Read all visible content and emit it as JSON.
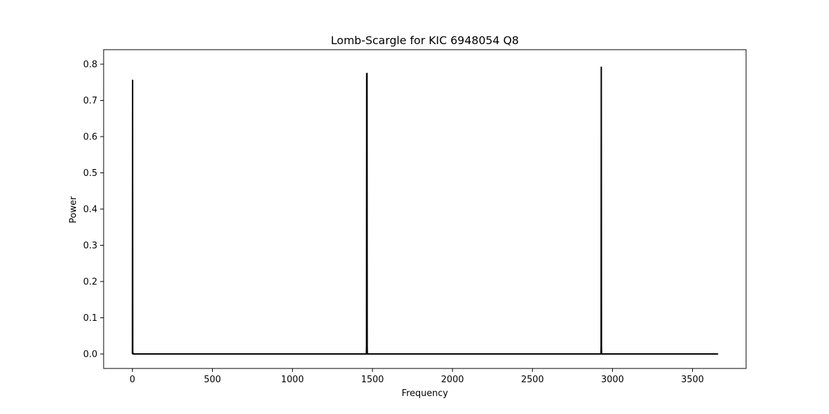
{
  "chart_data": {
    "type": "line",
    "title": "Lomb-Scargle for KIC 6948054 Q8",
    "xlabel": "Frequency",
    "ylabel": "Power",
    "xlim": [
      -180,
      3835
    ],
    "ylim": [
      -0.04,
      0.84
    ],
    "xticks": [
      0,
      500,
      1000,
      1500,
      2000,
      2500,
      3000,
      3500
    ],
    "yticks": [
      0.0,
      0.1,
      0.2,
      0.3,
      0.4,
      0.5,
      0.6,
      0.7,
      0.8
    ],
    "ytick_labels": [
      "0.0",
      "0.1",
      "0.2",
      "0.3",
      "0.4",
      "0.5",
      "0.6",
      "0.7",
      "0.8"
    ],
    "grid": false,
    "legend": "none",
    "color": "#000000",
    "series": [
      {
        "x": [
          0,
          1,
          2,
          3,
          4,
          384,
          392,
          440,
          448,
          1024,
          1032,
          1080,
          1088,
          1462,
          1463,
          1464,
          1465,
          1466,
          1467,
          1468,
          1850,
          1858,
          1906,
          1914,
          2490,
          2498,
          2546,
          2554,
          2928,
          2929,
          2930,
          2931,
          2932,
          2933,
          3316,
          3324,
          3372,
          3380,
          3660
        ],
        "y": [
          0.0,
          0.757,
          0.0,
          0.005,
          0.0,
          0.0,
          0.0,
          0.0,
          0.0,
          0.0,
          0.0,
          0.0,
          0.0,
          0.0,
          0.02,
          0.776,
          0.4,
          0.776,
          0.02,
          0.0,
          0.0,
          0.0,
          0.0,
          0.0,
          0.0,
          0.0,
          0.0,
          0.0,
          0.0,
          0.02,
          0.793,
          0.02,
          0.0,
          0.0,
          0.0,
          0.0,
          0.0,
          0.0,
          0.0
        ]
      }
    ]
  }
}
